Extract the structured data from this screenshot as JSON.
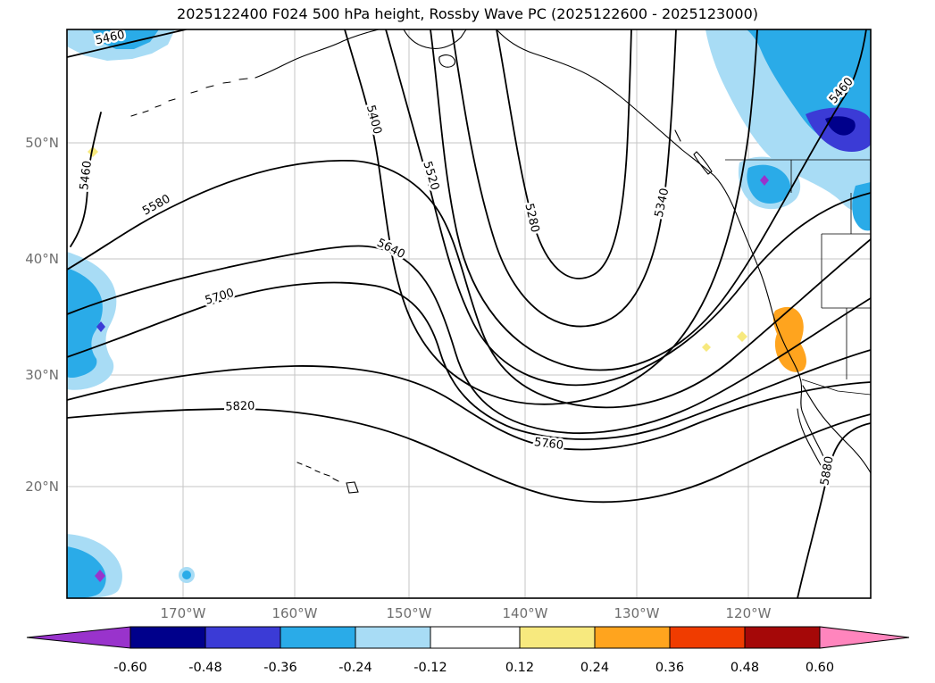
{
  "title": "2025122400 F024 500 hPa height, Rossby Wave PC (2025122600 - 2025123000)",
  "axes": {
    "lat_ticks": [
      "50°N",
      "40°N",
      "30°N",
      "20°N"
    ],
    "lon_ticks": [
      "170°W",
      "160°W",
      "150°W",
      "140°W",
      "130°W",
      "120°W"
    ]
  },
  "map": {
    "contour_labels": [
      "5460",
      "5460",
      "5580",
      "5400",
      "5520",
      "5280",
      "5640",
      "5700",
      "5340",
      "5460",
      "5820",
      "5760",
      "5880"
    ]
  },
  "colorbar": {
    "ticks": [
      "-0.60",
      "-0.48",
      "-0.36",
      "-0.24",
      "-0.12",
      "0.12",
      "0.24",
      "0.36",
      "0.48",
      "0.60"
    ],
    "colors": [
      "#9933cc",
      "#00008b",
      "#3b3bd6",
      "#2aabe8",
      "#a8dcf5",
      "#ffffff",
      "#f7e97e",
      "#ffa41e",
      "#f03c00",
      "#a50808",
      "#ff85bd"
    ]
  },
  "chart_data": {
    "type": "contour-map",
    "title": "2025122400 F024 500 hPa height, Rossby Wave PC (2025122600 - 2025123000)",
    "init_time": "2025122400",
    "forecast_hour": "F024",
    "contour_field": "500 hPa geopotential height (m)",
    "shading_field": "Rossby Wave PC (2025122600 - 2025123000)",
    "contour_levels_labeled": [
      5280,
      5340,
      5400,
      5460,
      5520,
      5580,
      5640,
      5700,
      5760,
      5820,
      5880
    ],
    "contour_interval": 60,
    "x_axis": {
      "label": "longitude",
      "ticks": [
        "170°W",
        "160°W",
        "150°W",
        "140°W",
        "130°W",
        "120°W"
      ]
    },
    "y_axis": {
      "label": "latitude",
      "ticks": [
        "50°N",
        "40°N",
        "30°N",
        "20°N"
      ]
    },
    "pattern": "deep trough (min < 5280 m) near 140°W over the NE Pacific, ridge (> 5820 m) over the central subtropical Pacific, heights rising to > 5880 m at the southeast corner",
    "colorbar": {
      "levels": [
        -0.6,
        -0.48,
        -0.36,
        -0.24,
        -0.12,
        0.12,
        0.24,
        0.36,
        0.48,
        0.6
      ],
      "extend": "both"
    },
    "shaded_features": [
      {
        "sign": "negative",
        "approx_location": "northwest corner near 56°N 178°W",
        "min": "<= -0.36"
      },
      {
        "sign": "negative",
        "approx_location": "west edge 30-45°N near 180°",
        "min": "<= -0.36"
      },
      {
        "sign": "negative",
        "approx_location": "southwest corner near 13°N, small core <= -0.60"
      },
      {
        "sign": "negative",
        "approx_location": "northeast region 45-58°N 110-125°W, core <= -0.48"
      },
      {
        "sign": "positive",
        "approx_location": "near 30-34°N 114-117°W",
        "max": ">= 0.36"
      }
    ]
  }
}
